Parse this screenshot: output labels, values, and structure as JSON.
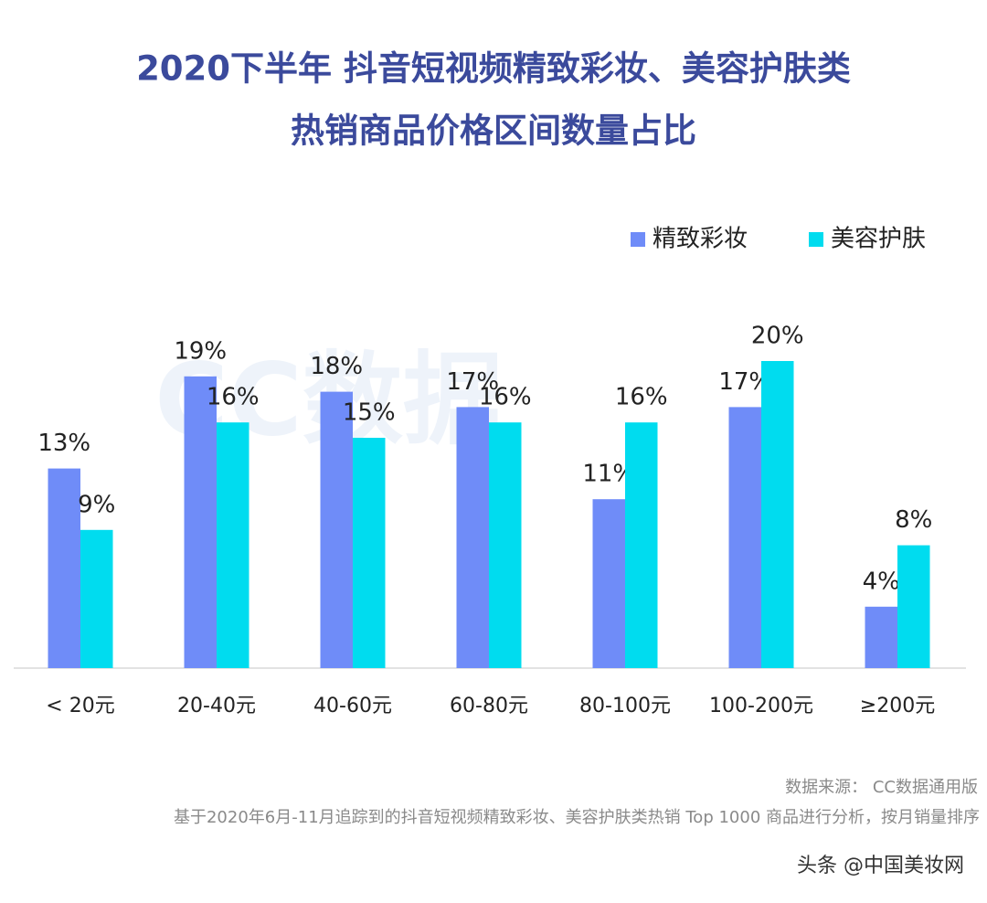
{
  "chart_data": {
    "type": "bar",
    "title": [
      "2020下半年 抖音短视频精致彩妆、美容护肤类",
      "热销商品价格区间数量占比"
    ],
    "categories": [
      "< 20元",
      "20-40元",
      "40-60元",
      "60-80元",
      "80-100元",
      "100-200元",
      "≥200元"
    ],
    "series": [
      {
        "name": "精致彩妆",
        "color": "#6f8cf8",
        "values": [
          13,
          19,
          18,
          17,
          11,
          17,
          4
        ],
        "value_labels": [
          "13%",
          "19%",
          "18%",
          "17%",
          "11%",
          "17%",
          "4%"
        ]
      },
      {
        "name": "美容护肤",
        "color": "#00dcef",
        "values": [
          9,
          16,
          15,
          16,
          16,
          20,
          8
        ],
        "value_labels": [
          "9%",
          "16%",
          "15%",
          "16%",
          "16%",
          "20%",
          "8%"
        ]
      }
    ],
    "legend": "top-right",
    "watermark": "CC数据",
    "source": "数据来源： CC数据通用版",
    "note": "基于2020年6月-11月追踪到的抖音短视频精致彩妆、美容护肤类热销 Top 1000 商品进行分析，按月销量排序",
    "credit": "头条 @中国美妆网"
  }
}
